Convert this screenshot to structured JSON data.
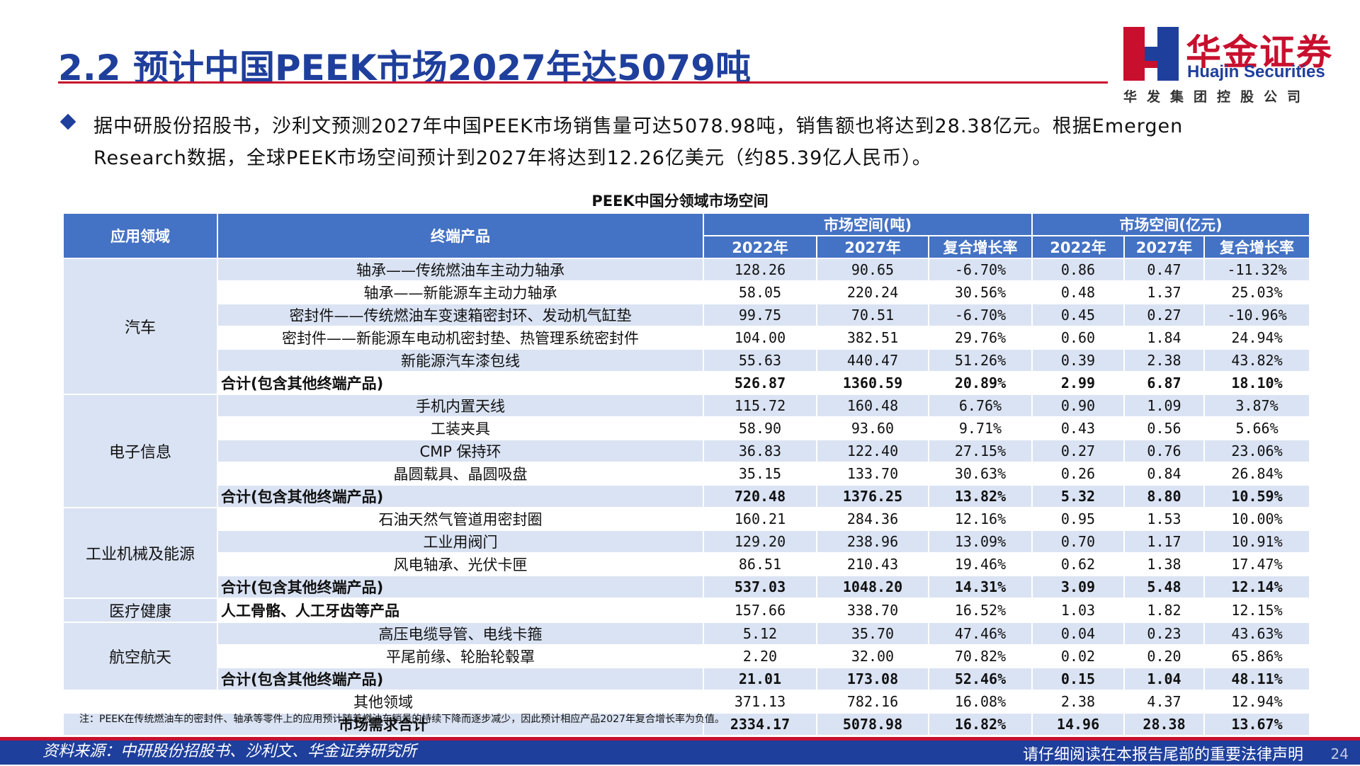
{
  "title": "2.2 预计中国PEEK市场2027年达5079吨",
  "logo": {
    "cn": "华金证券",
    "en": "Huajin Securities",
    "sub": "华发集团控股公司"
  },
  "bullet": {
    "line1": "据中研股份招股书，沙利文预测2027年中国PEEK市场销售量可达5078.98吨，销售额也将达到28.38亿元。根据Emergen",
    "line2": "Research数据，全球PEEK市场空间预计到2027年将达到12.26亿美元（约85.39亿人民币）。"
  },
  "table": {
    "title": "PEEK中国分领域市场空间",
    "headers": {
      "domain": "应用领域",
      "product": "终端产品",
      "group_ton": "市场空间(吨)",
      "group_yi": "市场空间(亿元)",
      "y2022": "2022年",
      "y2027": "2027年",
      "cagr": "复合增长率"
    },
    "domains": {
      "auto": "汽车",
      "electronics": "电子信息",
      "industrial": "工业机械及能源",
      "medical": "医疗健康",
      "aero": "航空航天"
    },
    "rows": [
      {
        "product": "轴承——传统燃油车主动力轴承",
        "t22": "128.26",
        "t27": "90.65",
        "tc": "-6.70%",
        "y22": "0.86",
        "y27": "0.47",
        "yc": "-11.32%"
      },
      {
        "product": "轴承——新能源车主动力轴承",
        "t22": "58.05",
        "t27": "220.24",
        "tc": "30.56%",
        "y22": "0.48",
        "y27": "1.37",
        "yc": "25.03%"
      },
      {
        "product": "密封件——传统燃油车变速箱密封环、发动机气缸垫",
        "t22": "99.75",
        "t27": "70.51",
        "tc": "-6.70%",
        "y22": "0.45",
        "y27": "0.27",
        "yc": "-10.96%"
      },
      {
        "product": "密封件——新能源车电动机密封垫、热管理系统密封件",
        "t22": "104.00",
        "t27": "382.51",
        "tc": "29.76%",
        "y22": "0.60",
        "y27": "1.84",
        "yc": "24.94%"
      },
      {
        "product": "新能源汽车漆包线",
        "t22": "55.63",
        "t27": "440.47",
        "tc": "51.26%",
        "y22": "0.39",
        "y27": "2.38",
        "yc": "43.82%"
      },
      {
        "product": "合计(包含其他终端产品)",
        "t22": "526.87",
        "t27": "1360.59",
        "tc": "20.89%",
        "y22": "2.99",
        "y27": "6.87",
        "yc": "18.10%"
      },
      {
        "product": "手机内置天线",
        "t22": "115.72",
        "t27": "160.48",
        "tc": "6.76%",
        "y22": "0.90",
        "y27": "1.09",
        "yc": "3.87%"
      },
      {
        "product": "工装夹具",
        "t22": "58.90",
        "t27": "93.60",
        "tc": "9.71%",
        "y22": "0.43",
        "y27": "0.56",
        "yc": "5.66%"
      },
      {
        "product": "CMP 保持环",
        "t22": "36.83",
        "t27": "122.40",
        "tc": "27.15%",
        "y22": "0.27",
        "y27": "0.76",
        "yc": "23.06%"
      },
      {
        "product": "晶圆载具、晶圆吸盘",
        "t22": "35.15",
        "t27": "133.70",
        "tc": "30.63%",
        "y22": "0.26",
        "y27": "0.84",
        "yc": "26.84%"
      },
      {
        "product": "合计(包含其他终端产品)",
        "t22": "720.48",
        "t27": "1376.25",
        "tc": "13.82%",
        "y22": "5.32",
        "y27": "8.80",
        "yc": "10.59%"
      },
      {
        "product": "石油天然气管道用密封圈",
        "t22": "160.21",
        "t27": "284.36",
        "tc": "12.16%",
        "y22": "0.95",
        "y27": "1.53",
        "yc": "10.00%"
      },
      {
        "product": "工业用阀门",
        "t22": "129.20",
        "t27": "238.96",
        "tc": "13.09%",
        "y22": "0.70",
        "y27": "1.17",
        "yc": "10.91%"
      },
      {
        "product": "风电轴承、光伏卡匣",
        "t22": "86.51",
        "t27": "210.43",
        "tc": "19.46%",
        "y22": "0.62",
        "y27": "1.38",
        "yc": "17.47%"
      },
      {
        "product": "合计(包含其他终端产品)",
        "t22": "537.03",
        "t27": "1048.20",
        "tc": "14.31%",
        "y22": "3.09",
        "y27": "5.48",
        "yc": "12.14%"
      },
      {
        "product": "人工骨骼、人工牙齿等产品",
        "t22": "157.66",
        "t27": "338.70",
        "tc": "16.52%",
        "y22": "1.03",
        "y27": "1.82",
        "yc": "12.15%"
      },
      {
        "product": "高压电缆导管、电线卡箍",
        "t22": "5.12",
        "t27": "35.70",
        "tc": "47.46%",
        "y22": "0.04",
        "y27": "0.23",
        "yc": "43.63%"
      },
      {
        "product": "平尾前缘、轮胎轮毂罩",
        "t22": "2.20",
        "t27": "32.00",
        "tc": "70.82%",
        "y22": "0.02",
        "y27": "0.20",
        "yc": "65.86%"
      },
      {
        "product": "合计(包含其他终端产品)",
        "t22": "21.01",
        "t27": "173.08",
        "tc": "52.46%",
        "y22": "0.15",
        "y27": "1.04",
        "yc": "48.11%"
      },
      {
        "product": "其他领域",
        "t22": "371.13",
        "t27": "782.16",
        "tc": "16.08%",
        "y22": "2.38",
        "y27": "4.37",
        "yc": "12.94%"
      },
      {
        "product": "市场需求合计",
        "t22": "2334.17",
        "t27": "5078.98",
        "tc": "16.82%",
        "y22": "14.96",
        "y27": "28.38",
        "yc": "13.67%"
      }
    ]
  },
  "note": "注：PEEK在传统燃油车的密封件、轴承等零件上的应用预计随着燃油车销量的持续下降而逐步减少，因此预计相应产品2027年复合增长率为负值。",
  "footer": {
    "source": "资料来源：中研股份招股书、沙利文、华金证券研究所",
    "disclaimer": "请仔细阅读在本报告尾部的重要法律声明",
    "page": "24"
  },
  "colors": {
    "brand_blue": "#1f3f9c",
    "brand_red": "#c8102e",
    "header_blue": "#4472c4",
    "row_light": "#dae3f3"
  }
}
